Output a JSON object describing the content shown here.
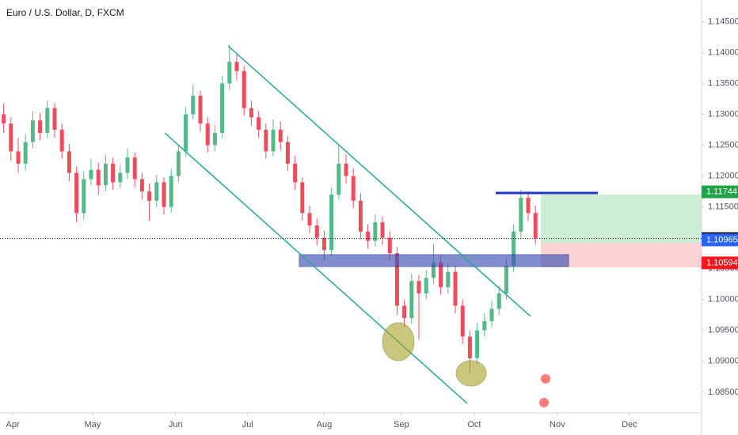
{
  "chart_data": {
    "type": "candlestick",
    "title": "Euro / U.S. Dollar, D, FXCM",
    "up_color": "#53b987",
    "down_color": "#eb4d5c",
    "xlim": [
      0,
      96.3
    ],
    "xticks": [
      {
        "value": 1.75,
        "label": "Apr"
      },
      {
        "value": 12.7,
        "label": "May"
      },
      {
        "value": 24.1,
        "label": "Jun"
      },
      {
        "value": 34,
        "label": "Jul"
      },
      {
        "value": 44.5,
        "label": "Aug"
      },
      {
        "value": 55.1,
        "label": "Sep"
      },
      {
        "value": 65.1,
        "label": "Oct"
      },
      {
        "value": 76.5,
        "label": "Nov"
      },
      {
        "value": 86.4,
        "label": "Dec"
      }
    ],
    "ylim": [
      1.08165,
      1.14851
    ],
    "yticks": [
      {
        "value": 1.085,
        "label": "1.08500"
      },
      {
        "value": 1.09,
        "label": "1.09000"
      },
      {
        "value": 1.095,
        "label": "1.09500"
      },
      {
        "value": 1.1,
        "label": "1.10000"
      },
      {
        "value": 1.105,
        "label": "1.10500"
      },
      {
        "value": 1.11,
        "label": "1.11000"
      },
      {
        "value": 1.115,
        "label": "1.11500"
      },
      {
        "value": 1.12,
        "label": "1.12000"
      },
      {
        "value": 1.125,
        "label": "1.12500"
      },
      {
        "value": 1.13,
        "label": "1.13000"
      },
      {
        "value": 1.135,
        "label": "1.13500"
      },
      {
        "value": 1.14,
        "label": "1.14000"
      },
      {
        "value": 1.145,
        "label": "1.14500"
      }
    ],
    "price_labels": [
      {
        "value": 1.11744,
        "label": "1.11744",
        "color": "#21a148"
      },
      {
        "value": 1.10988,
        "label": "1.10988",
        "color": "#131722"
      },
      {
        "value": 1.10965,
        "label": "1.10965",
        "color": "#2962ff"
      },
      {
        "value": 1.10594,
        "label": "1.10594",
        "color": "#f0171f"
      }
    ],
    "candles": [
      [
        1.13,
        1.1318,
        1.127,
        1.1285
      ],
      [
        1.1285,
        1.1295,
        1.1225,
        1.124
      ],
      [
        1.124,
        1.1262,
        1.1205,
        1.122
      ],
      [
        1.122,
        1.1268,
        1.121,
        1.1255
      ],
      [
        1.1255,
        1.1305,
        1.1245,
        1.129
      ],
      [
        1.129,
        1.1302,
        1.1258,
        1.127
      ],
      [
        1.127,
        1.1322,
        1.1262,
        1.131
      ],
      [
        1.131,
        1.1318,
        1.1262,
        1.1275
      ],
      [
        1.1275,
        1.1285,
        1.1228,
        1.124
      ],
      [
        1.124,
        1.1252,
        1.1192,
        1.1205
      ],
      [
        1.1205,
        1.1215,
        1.1125,
        1.114
      ],
      [
        1.114,
        1.1208,
        1.113,
        1.1195
      ],
      [
        1.1195,
        1.1228,
        1.1185,
        1.121
      ],
      [
        1.121,
        1.1222,
        1.117,
        1.1185
      ],
      [
        1.1185,
        1.1235,
        1.1175,
        1.122
      ],
      [
        1.122,
        1.123,
        1.1178,
        1.119
      ],
      [
        1.119,
        1.1218,
        1.118,
        1.1205
      ],
      [
        1.1205,
        1.1245,
        1.1195,
        1.123
      ],
      [
        1.123,
        1.1238,
        1.1182,
        1.1195
      ],
      [
        1.1195,
        1.1205,
        1.1162,
        1.1175
      ],
      [
        1.1175,
        1.1188,
        1.1128,
        1.116
      ],
      [
        1.116,
        1.1202,
        1.115,
        1.119
      ],
      [
        1.119,
        1.1198,
        1.1138,
        1.115
      ],
      [
        1.115,
        1.1212,
        1.114,
        1.12
      ],
      [
        1.12,
        1.1252,
        1.119,
        1.124
      ],
      [
        1.124,
        1.1312,
        1.1232,
        1.13
      ],
      [
        1.13,
        1.1348,
        1.1292,
        1.133
      ],
      [
        1.133,
        1.1338,
        1.1272,
        1.1285
      ],
      [
        1.1285,
        1.1295,
        1.1238,
        1.125
      ],
      [
        1.125,
        1.1282,
        1.124,
        1.127
      ],
      [
        1.127,
        1.1362,
        1.1262,
        1.135
      ],
      [
        1.135,
        1.1412,
        1.134,
        1.1385
      ],
      [
        1.1385,
        1.1398,
        1.1355,
        1.137
      ],
      [
        1.137,
        1.1378,
        1.1298,
        1.131
      ],
      [
        1.131,
        1.1322,
        1.1282,
        1.1295
      ],
      [
        1.1295,
        1.1305,
        1.1262,
        1.1275
      ],
      [
        1.1275,
        1.1285,
        1.1228,
        1.124
      ],
      [
        1.124,
        1.1292,
        1.1232,
        1.1275
      ],
      [
        1.1275,
        1.1288,
        1.1242,
        1.1255
      ],
      [
        1.1255,
        1.1265,
        1.1208,
        1.122
      ],
      [
        1.122,
        1.1232,
        1.1178,
        1.119
      ],
      [
        1.119,
        1.1198,
        1.1128,
        1.114
      ],
      [
        1.114,
        1.1152,
        1.1108,
        1.112
      ],
      [
        1.112,
        1.1132,
        1.1088,
        1.11
      ],
      [
        1.11,
        1.1112,
        1.1062,
        1.108
      ],
      [
        1.108,
        1.1182,
        1.1072,
        1.117
      ],
      [
        1.117,
        1.125,
        1.1162,
        1.122
      ],
      [
        1.122,
        1.1235,
        1.1188,
        1.12
      ],
      [
        1.12,
        1.1212,
        1.1148,
        1.116
      ],
      [
        1.116,
        1.1172,
        1.1098,
        1.111
      ],
      [
        1.111,
        1.1122,
        1.1082,
        1.1095
      ],
      [
        1.1095,
        1.1138,
        1.1085,
        1.1125
      ],
      [
        1.1125,
        1.1135,
        1.1088,
        1.11
      ],
      [
        1.11,
        1.111,
        1.1062,
        1.1075
      ],
      [
        1.1075,
        1.1085,
        1.0975,
        1.099
      ],
      [
        1.099,
        1.1,
        1.0955,
        1.097
      ],
      [
        1.097,
        1.1042,
        1.096,
        1.103
      ],
      [
        1.103,
        1.104,
        1.0935,
        1.101
      ],
      [
        1.101,
        1.1048,
        1.1,
        1.1035
      ],
      [
        1.1035,
        1.109,
        1.1025,
        1.106
      ],
      [
        1.106,
        1.1072,
        1.1008,
        1.102
      ],
      [
        1.102,
        1.1058,
        1.101,
        1.1045
      ],
      [
        1.1045,
        1.1055,
        1.0978,
        1.099
      ],
      [
        1.099,
        1.1,
        1.0928,
        1.094
      ],
      [
        1.094,
        1.095,
        1.088,
        1.0905
      ],
      [
        1.0905,
        1.0962,
        1.0895,
        1.095
      ],
      [
        1.095,
        1.0978,
        1.094,
        1.0965
      ],
      [
        1.0965,
        1.0998,
        1.0955,
        1.0985
      ],
      [
        1.0985,
        1.1022,
        1.0975,
        1.101
      ],
      [
        1.101,
        1.1068,
        1.1,
        1.1055
      ],
      [
        1.1055,
        1.1122,
        1.1045,
        1.111
      ],
      [
        1.111,
        1.1178,
        1.11,
        1.1165
      ],
      [
        1.1165,
        1.1175,
        1.1128,
        1.114
      ],
      [
        1.114,
        1.1152,
        1.109,
        1.1099
      ]
    ]
  }
}
